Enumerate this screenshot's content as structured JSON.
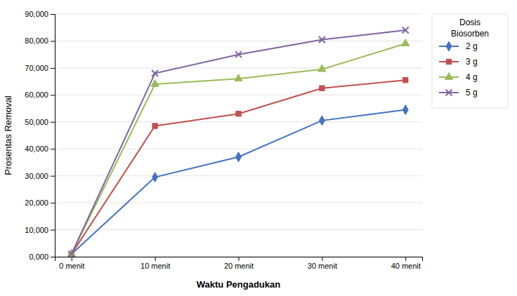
{
  "chart_data": {
    "type": "line",
    "categories": [
      "0 menit",
      "10 menit",
      "20 menit",
      "30 menit",
      "40 menit"
    ],
    "series": [
      {
        "name": "2 g",
        "color": "#4472C4",
        "marker": "diamond",
        "values": [
          1.0,
          29.5,
          37.0,
          50.5,
          54.5
        ]
      },
      {
        "name": "3 g",
        "color": "#C0504D",
        "marker": "square",
        "values": [
          1.0,
          48.5,
          53.0,
          62.5,
          65.5
        ]
      },
      {
        "name": "4 g",
        "color": "#9BBB59",
        "marker": "triangle",
        "values": [
          1.0,
          64.0,
          66.0,
          69.5,
          79.0
        ]
      },
      {
        "name": "5 g",
        "color": "#8064A2",
        "marker": "x",
        "values": [
          1.0,
          68.0,
          75.0,
          80.5,
          84.0
        ]
      }
    ],
    "xlabel": "Waktu Pengadukan",
    "ylabel": "Prosentas Removal",
    "legend_title": "Dosis\nBiosorben",
    "ylim": [
      0,
      90
    ],
    "yticks": [
      {
        "value": 0,
        "label": "0,000"
      },
      {
        "value": 10,
        "label": "10,000"
      },
      {
        "value": 20,
        "label": "20,000"
      },
      {
        "value": 30,
        "label": "30,000"
      },
      {
        "value": 40,
        "label": "40,000"
      },
      {
        "value": 50,
        "label": "50,000"
      },
      {
        "value": 60,
        "label": "60,000"
      },
      {
        "value": 70,
        "label": "70,000"
      },
      {
        "value": 80,
        "label": "80,000"
      },
      {
        "value": 90,
        "label": "90,000"
      }
    ],
    "grid": true,
    "legend": "right"
  }
}
